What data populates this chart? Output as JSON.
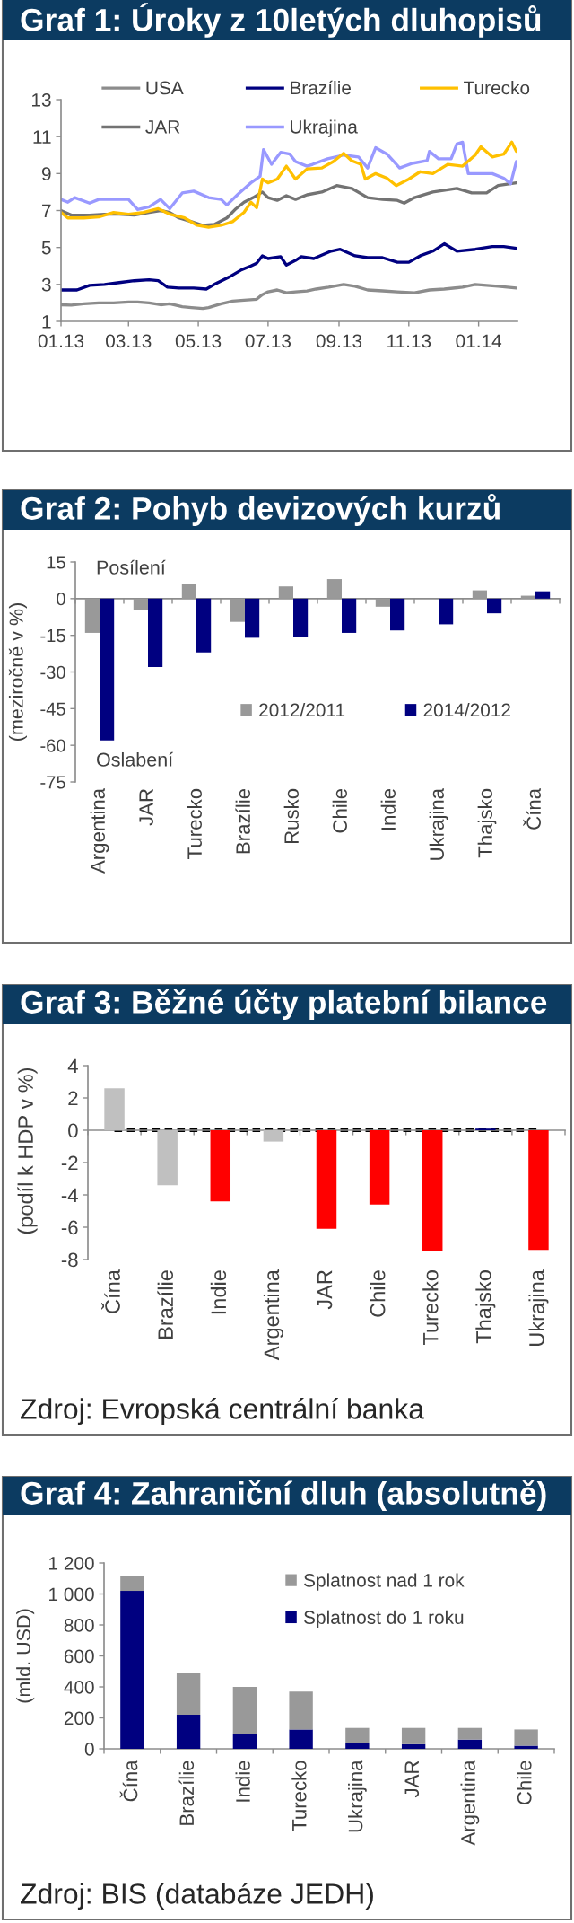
{
  "chart_data": [
    {
      "type": "line",
      "title": "Graf 1: Úroky z 10letých dluhopisů",
      "series": [
        {
          "name": "USA",
          "color": "#8c8c8c",
          "x": [
            "2013-01-01",
            "2013-01-10",
            "2013-01-21",
            "2013-02-03",
            "2013-02-16",
            "2013-03-01",
            "2013-03-09",
            "2013-03-19",
            "2013-03-29",
            "2013-04-06",
            "2013-04-17",
            "2013-04-25",
            "2013-05-05",
            "2013-05-10",
            "2013-05-21",
            "2013-05-31",
            "2013-06-10",
            "2013-06-21",
            "2013-06-26",
            "2013-07-01",
            "2013-07-09",
            "2013-07-17",
            "2013-07-25",
            "2013-08-04",
            "2013-08-12",
            "2013-08-23",
            "2013-09-05",
            "2013-09-15",
            "2013-09-26",
            "2013-10-09",
            "2013-10-22",
            "2013-11-06",
            "2013-11-19",
            "2013-12-02",
            "2013-12-18",
            "2013-12-29",
            "2014-01-08",
            "2014-01-18",
            "2014-02-03"
          ],
          "values": [
            1.9,
            1.88,
            1.95,
            2.0,
            2.0,
            2.05,
            2.05,
            2.0,
            1.9,
            1.95,
            1.8,
            1.75,
            1.7,
            1.75,
            1.95,
            2.1,
            2.15,
            2.2,
            2.45,
            2.6,
            2.7,
            2.55,
            2.6,
            2.65,
            2.75,
            2.85,
            3.0,
            2.9,
            2.7,
            2.65,
            2.6,
            2.55,
            2.7,
            2.75,
            2.85,
            3.0,
            2.95,
            2.9,
            2.8
          ]
        },
        {
          "name": "JAR",
          "color": "#737373",
          "x": [
            "2013-01-01",
            "2013-01-10",
            "2013-01-26",
            "2013-02-08",
            "2013-02-21",
            "2013-03-06",
            "2013-03-19",
            "2013-03-29",
            "2013-04-06",
            "2013-04-14",
            "2013-04-25",
            "2013-05-05",
            "2013-05-15",
            "2013-05-26",
            "2013-06-03",
            "2013-06-10",
            "2013-06-18",
            "2013-06-26",
            "2013-07-01",
            "2013-07-09",
            "2013-07-17",
            "2013-07-25",
            "2013-08-04",
            "2013-08-17",
            "2013-08-30",
            "2013-09-12",
            "2013-09-26",
            "2013-10-09",
            "2013-10-22",
            "2013-10-28",
            "2013-11-06",
            "2013-11-22",
            "2013-12-13",
            "2013-12-26",
            "2014-01-08",
            "2014-01-18",
            "2014-02-03"
          ],
          "values": [
            7.0,
            6.75,
            6.75,
            6.8,
            6.8,
            6.75,
            6.9,
            7.0,
            6.9,
            6.6,
            6.4,
            6.2,
            6.25,
            6.6,
            7.1,
            7.45,
            7.7,
            8.0,
            7.7,
            7.55,
            7.8,
            7.6,
            7.85,
            8.0,
            8.35,
            8.2,
            7.7,
            7.6,
            7.55,
            7.4,
            7.7,
            8.0,
            8.2,
            7.95,
            7.95,
            8.35,
            8.5
          ]
        },
        {
          "name": "Brazílie",
          "color": "#000080",
          "x": [
            "2013-01-01",
            "2013-01-15",
            "2013-01-26",
            "2013-02-08",
            "2013-02-21",
            "2013-03-06",
            "2013-03-19",
            "2013-03-27",
            "2013-04-04",
            "2013-04-14",
            "2013-04-27",
            "2013-05-08",
            "2013-05-15",
            "2013-05-28",
            "2013-06-08",
            "2013-06-16",
            "2013-06-21",
            "2013-06-26",
            "2013-07-01",
            "2013-07-12",
            "2013-07-17",
            "2013-07-25",
            "2013-07-30",
            "2013-08-10",
            "2013-08-25",
            "2013-09-02",
            "2013-09-15",
            "2013-09-26",
            "2013-10-09",
            "2013-10-22",
            "2013-11-01",
            "2013-11-11",
            "2013-11-22",
            "2013-12-02",
            "2013-12-13",
            "2013-12-29",
            "2014-01-13",
            "2014-01-23",
            "2014-02-03"
          ],
          "values": [
            2.7,
            2.7,
            2.95,
            3.0,
            3.1,
            3.2,
            3.25,
            3.2,
            2.85,
            2.8,
            2.8,
            2.75,
            3.0,
            3.4,
            3.8,
            4.0,
            4.15,
            4.55,
            4.4,
            4.5,
            4.05,
            4.3,
            4.5,
            4.4,
            4.8,
            4.9,
            4.55,
            4.45,
            4.45,
            4.2,
            4.2,
            4.55,
            4.8,
            5.2,
            4.8,
            4.9,
            5.05,
            5.05,
            4.95
          ]
        },
        {
          "name": "Ukrajina",
          "color": "#9999ff",
          "x": [
            "2013-01-01",
            "2013-01-07",
            "2013-01-13",
            "2013-01-26",
            "2013-02-03",
            "2013-02-16",
            "2013-03-01",
            "2013-03-09",
            "2013-03-19",
            "2013-03-29",
            "2013-04-06",
            "2013-04-17",
            "2013-04-27",
            "2013-05-10",
            "2013-05-21",
            "2013-05-26",
            "2013-06-05",
            "2013-06-16",
            "2013-06-24",
            "2013-06-27",
            "2013-07-04",
            "2013-07-12",
            "2013-07-20",
            "2013-07-25",
            "2013-08-04",
            "2013-08-09",
            "2013-08-22",
            "2013-09-05",
            "2013-09-18",
            "2013-09-26",
            "2013-10-03",
            "2013-10-13",
            "2013-10-24",
            "2013-11-04",
            "2013-11-17",
            "2013-11-19",
            "2013-11-27",
            "2013-12-08",
            "2013-12-13",
            "2013-12-18",
            "2013-12-23",
            "2014-01-03",
            "2014-01-13",
            "2014-01-23",
            "2014-01-29",
            "2014-02-03"
          ],
          "values": [
            7.6,
            7.45,
            7.7,
            7.4,
            7.6,
            7.6,
            7.6,
            7.05,
            7.2,
            7.6,
            7.1,
            7.95,
            8.05,
            7.7,
            7.6,
            7.3,
            7.9,
            8.5,
            8.85,
            10.3,
            9.5,
            10.15,
            10.05,
            9.65,
            9.4,
            9.5,
            9.8,
            10.0,
            9.9,
            9.3,
            10.4,
            10.05,
            9.3,
            9.55,
            9.7,
            10.2,
            9.8,
            9.8,
            10.6,
            10.7,
            9.0,
            9.0,
            9.0,
            8.75,
            8.45,
            9.65
          ]
        },
        {
          "name": "Turecko",
          "color": "#ffc000",
          "x": [
            "2013-01-01",
            "2013-01-07",
            "2013-01-21",
            "2013-02-03",
            "2013-02-16",
            "2013-03-01",
            "2013-03-14",
            "2013-03-27",
            "2013-04-06",
            "2013-04-19",
            "2013-04-30",
            "2013-05-10",
            "2013-05-21",
            "2013-05-31",
            "2013-06-10",
            "2013-06-16",
            "2013-06-21",
            "2013-06-26",
            "2013-07-01",
            "2013-07-09",
            "2013-07-17",
            "2013-07-25",
            "2013-08-04",
            "2013-08-17",
            "2013-08-27",
            "2013-09-05",
            "2013-09-12",
            "2013-09-20",
            "2013-09-24",
            "2013-10-03",
            "2013-10-13",
            "2013-10-21",
            "2013-11-01",
            "2013-11-11",
            "2013-11-22",
            "2013-12-05",
            "2013-12-18",
            "2013-12-29",
            "2014-01-03",
            "2014-01-13",
            "2014-01-23",
            "2014-01-30",
            "2014-02-03"
          ],
          "values": [
            6.9,
            6.6,
            6.6,
            6.65,
            6.9,
            6.8,
            6.9,
            7.1,
            6.8,
            6.6,
            6.2,
            6.1,
            6.2,
            6.4,
            6.9,
            7.45,
            7.15,
            8.7,
            8.5,
            8.7,
            9.4,
            8.7,
            9.25,
            9.3,
            9.65,
            10.1,
            9.7,
            9.5,
            8.7,
            9.0,
            8.75,
            8.35,
            8.7,
            9.1,
            9.0,
            9.5,
            9.4,
            10.0,
            10.45,
            9.9,
            10.05,
            10.7,
            10.2
          ]
        }
      ],
      "xlim": [
        "2013-01-01",
        "2014-02-04"
      ],
      "xticks": [
        {
          "value": "2013-01-01",
          "label": "01.13"
        },
        {
          "value": "2013-03-01",
          "label": "03.13"
        },
        {
          "value": "2013-05-01",
          "label": "05.13"
        },
        {
          "value": "2013-07-01",
          "label": "07.13"
        },
        {
          "value": "2013-09-01",
          "label": "09.13"
        },
        {
          "value": "2013-11-01",
          "label": "11.13"
        },
        {
          "value": "2014-01-01",
          "label": "01.14"
        }
      ],
      "ylim": [
        1,
        13
      ],
      "yticks": [
        1,
        3,
        5,
        7,
        9,
        11,
        13
      ],
      "legend": "top"
    },
    {
      "type": "bar",
      "title": "Graf 2: Pohyb devizových kurzů",
      "ylabel": "(meziročně v %)",
      "categories": [
        "Argentina",
        "JAR",
        "Turecko",
        "Brazílie",
        "Rusko",
        "Chile",
        "Indie",
        "Ukrajina",
        "Thajsko",
        "Čína"
      ],
      "series": [
        {
          "name": "2012/2011",
          "color": "#999999",
          "values": [
            -14,
            -4.5,
            6,
            -9.5,
            5,
            8,
            -3.3,
            null,
            3.4,
            1.2
          ]
        },
        {
          "name": "2014/2012",
          "color": "#000080",
          "values": [
            -58,
            -28,
            -22,
            -16,
            -15.5,
            -14,
            -13,
            -10.5,
            -6,
            3
          ]
        }
      ],
      "ylim": [
        -75,
        15
      ],
      "yticks": [
        -75,
        -60,
        -45,
        -30,
        -15,
        0,
        15
      ],
      "legend": "bottom right",
      "annotations": [
        "Posílení",
        "Oslabení"
      ]
    },
    {
      "type": "bar",
      "title": "Graf 3: Běžné účty platební bilance",
      "ylabel": "(podíl k HDP v %)",
      "categories": [
        "Čína",
        "Brazílie",
        "Indie",
        "Argentina",
        "JAR",
        "Chile",
        "Turecko",
        "Thajsko",
        "Ukrajina"
      ],
      "series": [
        {
          "values": [
            2.6,
            -3.4,
            -4.4,
            -0.7,
            -6.1,
            -4.6,
            -7.5,
            0.1,
            -7.4
          ],
          "colors": [
            "#c0c0c0",
            "#c0c0c0",
            "#ff0000",
            "#c0c0c0",
            "#ff0000",
            "#ff0000",
            "#ff0000",
            "#000080",
            "#ff0000"
          ]
        },
        {
          "type": "line",
          "color": "#000000",
          "line_style": "dashed",
          "values": [
            0,
            0,
            0,
            0,
            0,
            0,
            0,
            0,
            0
          ]
        }
      ],
      "ylim": [
        -8,
        4
      ],
      "yticks": [
        -8,
        -6,
        -4,
        -2,
        0,
        2,
        4
      ],
      "annotations": [
        "Zdroj: Evropská centrální banka"
      ]
    },
    {
      "type": "bar",
      "stacked": true,
      "title": "Graf 4: Zahraniční dluh (absolutně)",
      "ylabel": "(mld. USD)",
      "categories": [
        "Čína",
        "Brazílie",
        "Indie",
        "Turecko",
        "Ukrajina",
        "JAR",
        "Argentina",
        "Chile"
      ],
      "series": [
        {
          "name": "Splatnost do 1 roku",
          "color": "#000080",
          "values": [
            1020,
            220,
            95,
            125,
            35,
            30,
            60,
            20
          ]
        },
        {
          "name": "Splatnost nad 1 rok",
          "color": "#999999",
          "values": [
            95,
            270,
            305,
            245,
            100,
            105,
            75,
            105
          ]
        }
      ],
      "ylim": [
        0,
        1200
      ],
      "yticks": [
        0,
        200,
        400,
        600,
        800,
        {
          "value": 1000,
          "label": "1 000"
        },
        {
          "value": 1200,
          "label": "1 200"
        }
      ],
      "legend": "top right",
      "annotations": [
        "Zdroj: BIS (databáze JEDH)"
      ]
    }
  ]
}
